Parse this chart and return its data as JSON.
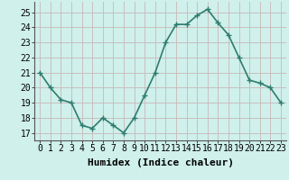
{
  "x": [
    0,
    1,
    2,
    3,
    4,
    5,
    6,
    7,
    8,
    9,
    10,
    11,
    12,
    13,
    14,
    15,
    16,
    17,
    18,
    19,
    20,
    21,
    22,
    23
  ],
  "y": [
    21,
    20,
    19.2,
    19,
    17.5,
    17.3,
    18,
    17.5,
    17,
    18,
    19.5,
    21,
    23,
    24.2,
    24.2,
    24.8,
    25.2,
    24.3,
    23.5,
    22,
    20.5,
    20.3,
    20,
    19
  ],
  "xlabel": "Humidex (Indice chaleur)",
  "ylim": [
    16.5,
    25.7
  ],
  "xlim": [
    -0.5,
    23.5
  ],
  "yticks": [
    17,
    18,
    19,
    20,
    21,
    22,
    23,
    24,
    25
  ],
  "xticks": [
    0,
    1,
    2,
    3,
    4,
    5,
    6,
    7,
    8,
    9,
    10,
    11,
    12,
    13,
    14,
    15,
    16,
    17,
    18,
    19,
    20,
    21,
    22,
    23
  ],
  "line_color": "#2e7d6e",
  "marker": "+",
  "marker_size": 4,
  "bg_color": "#cff0eb",
  "grid_color": "#c8b8b8",
  "axes_bg": "#cff0eb",
  "xlabel_fontsize": 8,
  "tick_fontsize": 7,
  "line_width": 1.2
}
